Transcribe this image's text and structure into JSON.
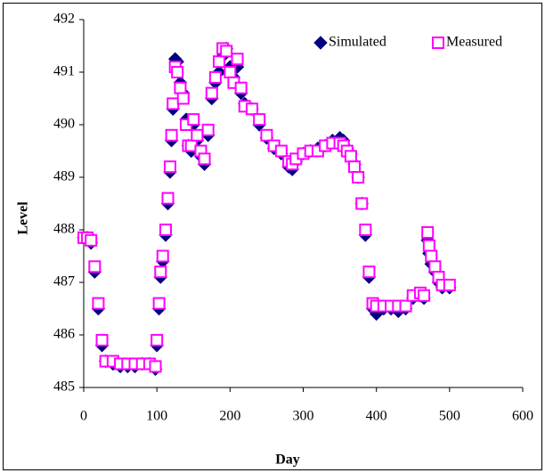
{
  "chart_data": {
    "type": "scatter",
    "xlabel": "Day",
    "ylabel": "Level",
    "xlim": [
      0,
      600
    ],
    "xticks": [
      0,
      100,
      200,
      300,
      400,
      500,
      600
    ],
    "ylim": [
      485,
      492
    ],
    "yticks": [
      485,
      486,
      487,
      488,
      489,
      490,
      491,
      492
    ],
    "legend": "top-right",
    "x": [
      0,
      5,
      10,
      15,
      20,
      25,
      30,
      40,
      50,
      60,
      70,
      80,
      90,
      98,
      100,
      103,
      105,
      108,
      112,
      115,
      118,
      120,
      122,
      125,
      128,
      132,
      136,
      140,
      143,
      147,
      150,
      155,
      160,
      165,
      170,
      175,
      180,
      185,
      190,
      195,
      200,
      205,
      210,
      215,
      220,
      230,
      240,
      250,
      260,
      270,
      280,
      285,
      290,
      300,
      310,
      320,
      330,
      340,
      350,
      355,
      360,
      365,
      370,
      375,
      380,
      385,
      390,
      395,
      400,
      410,
      420,
      430,
      440,
      450,
      460,
      465,
      470,
      472,
      475,
      480,
      485,
      490,
      500
    ],
    "series": [
      {
        "name": "Simulated",
        "color": "#000080",
        "values": [
          487.85,
          487.85,
          487.75,
          487.2,
          486.5,
          485.8,
          485.5,
          485.45,
          485.4,
          485.4,
          485.4,
          485.45,
          485.45,
          485.35,
          485.8,
          486.5,
          487.1,
          487.4,
          487.9,
          488.5,
          489.1,
          489.7,
          490.3,
          491.25,
          491.2,
          490.8,
          490.6,
          490.1,
          489.6,
          489.5,
          490.0,
          489.7,
          489.4,
          489.25,
          489.8,
          490.5,
          490.8,
          491.0,
          491.3,
          491.45,
          491.1,
          490.9,
          491.1,
          490.6,
          490.4,
          490.3,
          490.0,
          489.75,
          489.55,
          489.45,
          489.2,
          489.15,
          489.3,
          489.45,
          489.5,
          489.55,
          489.6,
          489.7,
          489.75,
          489.7,
          489.55,
          489.45,
          489.25,
          489.0,
          488.5,
          487.9,
          487.1,
          486.5,
          486.4,
          486.5,
          486.5,
          486.45,
          486.5,
          486.7,
          486.75,
          486.7,
          487.8,
          487.55,
          487.35,
          487.2,
          487.0,
          486.9,
          486.9
        ]
      },
      {
        "name": "Measured",
        "color": "#ff00ff",
        "values": [
          487.85,
          487.85,
          487.8,
          487.3,
          486.6,
          485.9,
          485.5,
          485.5,
          485.45,
          485.45,
          485.45,
          485.45,
          485.45,
          485.4,
          485.9,
          486.6,
          487.2,
          487.5,
          488.0,
          488.6,
          489.2,
          489.8,
          490.4,
          491.1,
          491.0,
          490.7,
          490.5,
          490.0,
          489.6,
          489.6,
          490.1,
          489.8,
          489.5,
          489.35,
          489.9,
          490.6,
          490.9,
          491.2,
          491.45,
          491.4,
          491.0,
          490.8,
          491.25,
          490.7,
          490.35,
          490.3,
          490.1,
          489.8,
          489.6,
          489.5,
          489.3,
          489.25,
          489.35,
          489.45,
          489.5,
          489.5,
          489.6,
          489.65,
          489.65,
          489.6,
          489.5,
          489.4,
          489.2,
          489.0,
          488.5,
          488.0,
          487.2,
          486.6,
          486.55,
          486.55,
          486.55,
          486.55,
          486.55,
          486.75,
          486.8,
          486.75,
          487.95,
          487.7,
          487.5,
          487.3,
          487.1,
          486.95,
          486.95
        ]
      }
    ]
  }
}
